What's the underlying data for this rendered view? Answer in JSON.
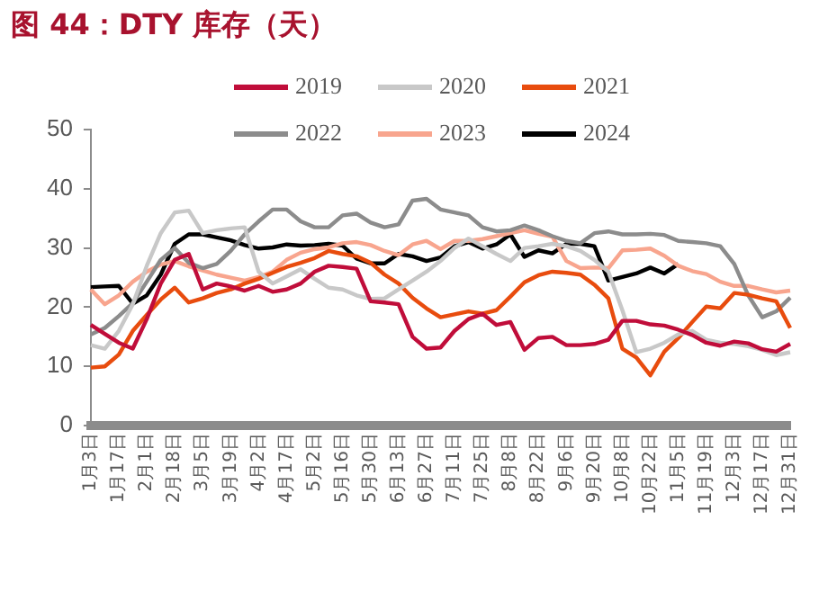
{
  "chart_data": {
    "type": "line",
    "title": "图 44：DTY 库存（天）",
    "categories": [
      "1月3日",
      null,
      "1月17日",
      null,
      "2月1日",
      null,
      "2月18日",
      null,
      "3月5日",
      null,
      "3月19日",
      null,
      "4月2日",
      null,
      "4月17日",
      null,
      "5月2日",
      null,
      "5月16日",
      null,
      "5月30日",
      null,
      "6月13日",
      null,
      "6月27日",
      null,
      "7月11日",
      null,
      "7月25日",
      null,
      "8月8日",
      null,
      "8月22日",
      null,
      "9月6日",
      null,
      "9月20日",
      null,
      "10月8日",
      null,
      "10月22日",
      null,
      "11月5日",
      null,
      "11月19日",
      null,
      "12月3日",
      null,
      "12月17日",
      null,
      "12月31日"
    ],
    "series": [
      {
        "name": "2019",
        "color": "#c00d3a",
        "values": [
          17,
          15.5,
          14,
          13,
          18,
          24,
          28,
          29,
          23,
          24,
          23.5,
          22.8,
          23.6,
          22.6,
          23,
          24,
          26,
          27,
          26.8,
          26.5,
          21,
          20.8,
          20.5,
          15,
          13,
          13.2,
          16,
          18,
          18.9,
          17,
          17.5,
          12.8,
          14.8,
          15,
          13.6,
          13.6,
          13.8,
          14.5,
          17.7,
          17.7,
          17.1,
          16.9,
          16.2,
          15.3,
          14,
          13.5,
          14.2,
          13.9,
          12.9,
          12.5,
          13.8
        ]
      },
      {
        "name": "2020",
        "color": "#c8c8c8",
        "values": [
          13.6,
          13,
          16,
          20.5,
          27,
          32.5,
          36,
          36.3,
          32.5,
          33,
          33.3,
          33.5,
          26,
          24,
          25.2,
          26.4,
          24.8,
          23.3,
          23,
          22,
          21.4,
          21.5,
          23,
          24.5,
          26,
          27.8,
          30,
          31.6,
          30.3,
          29,
          27.8,
          30,
          30.3,
          30.7,
          30.3,
          29.5,
          28,
          26,
          19.5,
          12.4,
          13,
          14,
          15.4,
          16,
          14.5,
          14,
          13.8,
          13.4,
          12.8,
          11.9,
          12.4
        ]
      },
      {
        "name": "2021",
        "color": "#e84c0e",
        "values": [
          9.8,
          10,
          12,
          16,
          18.7,
          21.3,
          23.3,
          20.8,
          21.5,
          22.4,
          23,
          24,
          24.8,
          25.8,
          26.8,
          27.5,
          28.3,
          29.5,
          29,
          28.6,
          27.5,
          25.5,
          24,
          21.6,
          19.8,
          18.3,
          18.8,
          19.3,
          18.9,
          19.5,
          21.8,
          24.2,
          25.4,
          26,
          25.8,
          25.5,
          23.8,
          21.5,
          13,
          11.5,
          8.5,
          12.5,
          14.8,
          17.5,
          20.1,
          19.8,
          22.4,
          22.1,
          21.5,
          21,
          16.5
        ]
      },
      {
        "name": "2022",
        "color": "#8c8c8c",
        "values": [
          15.4,
          16.5,
          18.5,
          20.7,
          24.3,
          28,
          30,
          27.5,
          26.6,
          27.3,
          29.5,
          32.3,
          34.5,
          36.5,
          36.5,
          34.5,
          33.5,
          33.5,
          35.5,
          35.8,
          34.3,
          33.5,
          34,
          38,
          38.3,
          36.5,
          36,
          35.5,
          33.5,
          32.8,
          33,
          33.8,
          33,
          32,
          31.2,
          30.8,
          32.5,
          32.8,
          32.3,
          32.3,
          32.4,
          32.2,
          31.2,
          31,
          30.8,
          30.3,
          27.3,
          22,
          18.3,
          19.3,
          21.6
        ]
      },
      {
        "name": "2023",
        "color": "#f8a58e",
        "values": [
          23,
          20.5,
          22,
          24.3,
          26,
          27.2,
          27.8,
          26.9,
          26.2,
          25.5,
          25,
          24.5,
          25.1,
          26,
          28,
          29.2,
          29.8,
          30.1,
          30.8,
          31,
          30.5,
          29.5,
          28.8,
          30.6,
          31.2,
          29.8,
          31.2,
          31.2,
          31.5,
          32,
          32.5,
          33,
          32.4,
          31.9,
          27.8,
          26.6,
          26.7,
          26.6,
          29.6,
          29.7,
          29.9,
          28.7,
          27,
          26.1,
          25.6,
          24.3,
          23.6,
          23.6,
          23,
          22.5,
          22.8
        ]
      },
      {
        "name": "2024",
        "color": "#000000",
        "values": [
          23.4,
          23.5,
          23.6,
          20.6,
          22,
          25.5,
          30.7,
          32.3,
          32.3,
          31.8,
          31.3,
          30.5,
          29.9,
          30.1,
          30.6,
          30.4,
          30.5,
          30.7,
          30.4,
          28.2,
          27.4,
          27.4,
          29,
          28.6,
          27.8,
          28.4,
          30.3,
          31,
          29.9,
          30.6,
          32.3,
          28.5,
          29.6,
          29.1,
          30.7,
          30.7,
          30.3,
          24.5,
          25.1,
          25.7,
          26.7,
          25.7,
          27.3,
          null,
          null,
          null,
          null,
          null,
          null,
          null,
          null
        ]
      }
    ],
    "ylim": [
      0,
      50
    ],
    "yticks": [
      0,
      10,
      20,
      30,
      40,
      50
    ],
    "grid": false,
    "legend": "top",
    "marker": "none",
    "line_style": "solid"
  }
}
